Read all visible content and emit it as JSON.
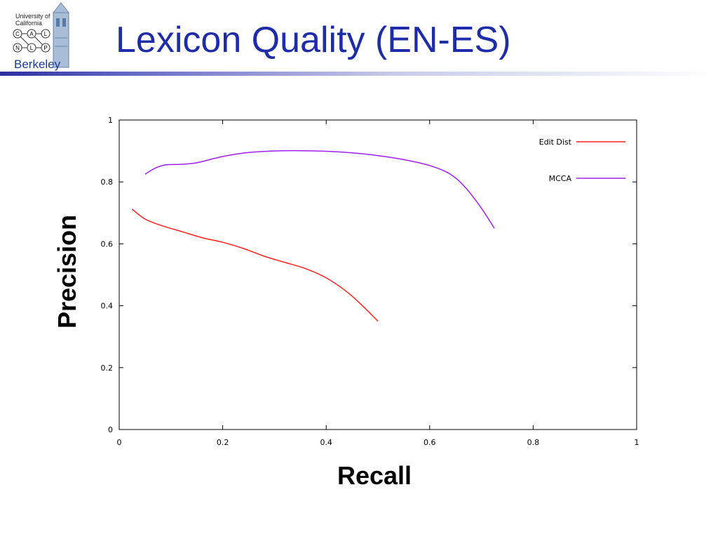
{
  "slide": {
    "title": "Lexicon Quality (EN-ES)",
    "logo": {
      "line1": "University of",
      "line2": "California",
      "letters": [
        "C",
        "A",
        "L",
        "N",
        "L",
        "P"
      ],
      "name": "Berkeley"
    }
  },
  "chart_data": {
    "type": "line",
    "xlabel": "Recall",
    "ylabel": "Precision",
    "xlim": [
      0,
      1
    ],
    "ylim": [
      0,
      1
    ],
    "xticks": [
      "0",
      "0.2",
      "0.4",
      "0.6",
      "0.8",
      "1"
    ],
    "yticks": [
      "0",
      "0.2",
      "0.4",
      "0.6",
      "0.8",
      "1"
    ],
    "grid": false,
    "legend_position": "top-right",
    "series": [
      {
        "name": "Edit Dist",
        "color": "#ff2020",
        "x": [
          0.025,
          0.05,
          0.08,
          0.12,
          0.16,
          0.2,
          0.24,
          0.28,
          0.32,
          0.36,
          0.4,
          0.44,
          0.47,
          0.5
        ],
        "y": [
          0.712,
          0.68,
          0.66,
          0.64,
          0.62,
          0.605,
          0.585,
          0.56,
          0.54,
          0.52,
          0.49,
          0.445,
          0.4,
          0.35
        ]
      },
      {
        "name": "MCCA",
        "color": "#a020f0",
        "x": [
          0.05,
          0.07,
          0.09,
          0.12,
          0.15,
          0.2,
          0.25,
          0.3,
          0.35,
          0.4,
          0.45,
          0.5,
          0.55,
          0.6,
          0.64,
          0.67,
          0.7,
          0.725
        ],
        "y": [
          0.825,
          0.845,
          0.855,
          0.857,
          0.862,
          0.882,
          0.895,
          0.9,
          0.901,
          0.899,
          0.894,
          0.885,
          0.872,
          0.853,
          0.825,
          0.78,
          0.715,
          0.65
        ]
      }
    ]
  }
}
